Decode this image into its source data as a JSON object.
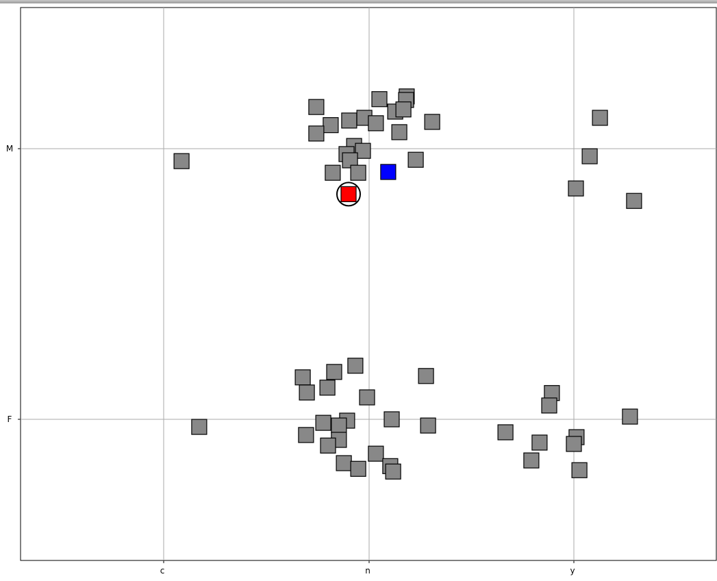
{
  "chart_data": {
    "type": "scatter",
    "title": "",
    "xlabel": "",
    "ylabel": "",
    "x_axis": {
      "kind": "categorical",
      "categories": [
        "c",
        "n",
        "y"
      ]
    },
    "y_axis": {
      "kind": "categorical",
      "categories": [
        "F",
        "M"
      ]
    },
    "grid": true,
    "legend": "none",
    "colors": {
      "default": "#888888",
      "highlight_red": "#ff0000",
      "highlight_blue": "#0000ff",
      "grid": "#aaaaaa"
    },
    "series": [
      {
        "color": "#888888",
        "points": [
          {
            "x": "c",
            "dx": 0.087,
            "y": "M",
            "dy": -0.046
          },
          {
            "x": "n",
            "dx": -0.257,
            "y": "M",
            "dy": 0.154
          },
          {
            "x": "n",
            "dx": -0.187,
            "y": "M",
            "dy": 0.087
          },
          {
            "x": "n",
            "dx": -0.257,
            "y": "M",
            "dy": 0.056
          },
          {
            "x": "n",
            "dx": -0.097,
            "y": "M",
            "dy": 0.104
          },
          {
            "x": "n",
            "dx": -0.023,
            "y": "M",
            "dy": 0.114
          },
          {
            "x": "n",
            "dx": 0.05,
            "y": "M",
            "dy": 0.183
          },
          {
            "x": "n",
            "dx": 0.033,
            "y": "M",
            "dy": 0.094
          },
          {
            "x": "n",
            "dx": 0.127,
            "y": "M",
            "dy": 0.137
          },
          {
            "x": "n",
            "dx": 0.183,
            "y": "M",
            "dy": 0.193
          },
          {
            "x": "n",
            "dx": 0.18,
            "y": "M",
            "dy": 0.18
          },
          {
            "x": "n",
            "dx": 0.167,
            "y": "M",
            "dy": 0.145
          },
          {
            "x": "n",
            "dx": 0.147,
            "y": "M",
            "dy": 0.061
          },
          {
            "x": "n",
            "dx": 0.307,
            "y": "M",
            "dy": 0.099
          },
          {
            "x": "n",
            "dx": -0.073,
            "y": "M",
            "dy": 0.01
          },
          {
            "x": "n",
            "dx": -0.03,
            "y": "M",
            "dy": -0.008
          },
          {
            "x": "n",
            "dx": -0.11,
            "y": "M",
            "dy": -0.02
          },
          {
            "x": "n",
            "dx": -0.093,
            "y": "M",
            "dy": -0.043
          },
          {
            "x": "n",
            "dx": -0.177,
            "y": "M",
            "dy": -0.089
          },
          {
            "x": "n",
            "dx": -0.053,
            "y": "M",
            "dy": -0.089
          },
          {
            "x": "n",
            "dx": 0.227,
            "y": "M",
            "dy": -0.041
          },
          {
            "x": "y",
            "dx": 0.127,
            "y": "M",
            "dy": 0.114
          },
          {
            "x": "y",
            "dx": 0.077,
            "y": "M",
            "dy": -0.028
          },
          {
            "x": "y",
            "dx": 0.01,
            "y": "M",
            "dy": -0.147
          },
          {
            "x": "y",
            "dx": 0.293,
            "y": "M",
            "dy": -0.193
          },
          {
            "x": "c",
            "dx": 0.173,
            "y": "F",
            "dy": -0.028
          },
          {
            "x": "n",
            "dx": -0.323,
            "y": "F",
            "dy": 0.155
          },
          {
            "x": "n",
            "dx": -0.17,
            "y": "F",
            "dy": 0.175
          },
          {
            "x": "n",
            "dx": -0.067,
            "y": "F",
            "dy": 0.198
          },
          {
            "x": "n",
            "dx": -0.303,
            "y": "F",
            "dy": 0.099
          },
          {
            "x": "n",
            "dx": -0.203,
            "y": "F",
            "dy": 0.117
          },
          {
            "x": "n",
            "dx": -0.01,
            "y": "F",
            "dy": 0.081
          },
          {
            "x": "n",
            "dx": 0.277,
            "y": "F",
            "dy": 0.16
          },
          {
            "x": "n",
            "dx": -0.223,
            "y": "F",
            "dy": -0.013
          },
          {
            "x": "n",
            "dx": -0.107,
            "y": "F",
            "dy": -0.005
          },
          {
            "x": "n",
            "dx": -0.147,
            "y": "F",
            "dy": -0.023
          },
          {
            "x": "n",
            "dx": 0.11,
            "y": "F",
            "dy": 0.0
          },
          {
            "x": "n",
            "dx": 0.287,
            "y": "F",
            "dy": -0.023
          },
          {
            "x": "n",
            "dx": -0.307,
            "y": "F",
            "dy": -0.058
          },
          {
            "x": "n",
            "dx": -0.147,
            "y": "F",
            "dy": -0.076
          },
          {
            "x": "n",
            "dx": -0.2,
            "y": "F",
            "dy": -0.097
          },
          {
            "x": "n",
            "dx": -0.123,
            "y": "F",
            "dy": -0.162
          },
          {
            "x": "n",
            "dx": -0.053,
            "y": "F",
            "dy": -0.183
          },
          {
            "x": "n",
            "dx": 0.033,
            "y": "F",
            "dy": -0.127
          },
          {
            "x": "n",
            "dx": 0.103,
            "y": "F",
            "dy": -0.173
          },
          {
            "x": "n",
            "dx": 0.117,
            "y": "F",
            "dy": -0.193
          },
          {
            "x": "y",
            "dx": -0.333,
            "y": "F",
            "dy": -0.048
          },
          {
            "x": "y",
            "dx": -0.167,
            "y": "F",
            "dy": -0.086
          },
          {
            "x": "y",
            "dx": -0.207,
            "y": "F",
            "dy": -0.152
          },
          {
            "x": "y",
            "dx": -0.107,
            "y": "F",
            "dy": 0.097
          },
          {
            "x": "y",
            "dx": -0.12,
            "y": "F",
            "dy": 0.051
          },
          {
            "x": "y",
            "dx": 0.013,
            "y": "F",
            "dy": -0.066
          },
          {
            "x": "y",
            "dx": 0.0,
            "y": "F",
            "dy": -0.091
          },
          {
            "x": "y",
            "dx": 0.027,
            "y": "F",
            "dy": -0.188
          },
          {
            "x": "y",
            "dx": 0.273,
            "y": "F",
            "dy": 0.01
          }
        ]
      },
      {
        "color": "#0000ff",
        "points": [
          {
            "x": "n",
            "dx": 0.093,
            "y": "M",
            "dy": -0.086
          }
        ]
      },
      {
        "color": "#ff0000",
        "circled": true,
        "points": [
          {
            "x": "n",
            "dx": -0.1,
            "y": "M",
            "dy": -0.168
          }
        ]
      }
    ]
  }
}
